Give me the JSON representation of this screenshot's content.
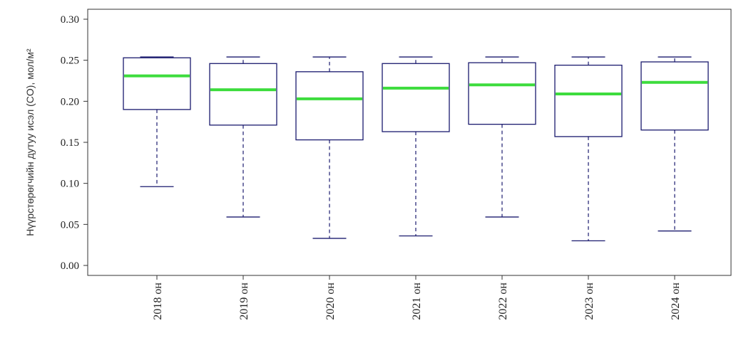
{
  "chart_data": {
    "type": "boxplot",
    "ylabel": "Нүүрстөрөгчийн дутуу исэл (CO), мол/м²",
    "ylim": [
      0.0,
      0.3
    ],
    "yticks": [
      "0.00",
      "0.05",
      "0.10",
      "0.15",
      "0.20",
      "0.25",
      "0.30"
    ],
    "categories": [
      "2018 он",
      "2019 он",
      "2020 он",
      "2021 он",
      "2022 он",
      "2023 он",
      "2024 он"
    ],
    "boxes": [
      {
        "min": 0.096,
        "q1": 0.19,
        "median": 0.231,
        "q3": 0.253,
        "max": 0.254
      },
      {
        "min": 0.059,
        "q1": 0.171,
        "median": 0.214,
        "q3": 0.246,
        "max": 0.254
      },
      {
        "min": 0.033,
        "q1": 0.153,
        "median": 0.203,
        "q3": 0.236,
        "max": 0.254
      },
      {
        "min": 0.036,
        "q1": 0.163,
        "median": 0.216,
        "q3": 0.246,
        "max": 0.254
      },
      {
        "min": 0.059,
        "q1": 0.172,
        "median": 0.22,
        "q3": 0.247,
        "max": 0.254
      },
      {
        "min": 0.03,
        "q1": 0.157,
        "median": 0.209,
        "q3": 0.244,
        "max": 0.254
      },
      {
        "min": 0.042,
        "q1": 0.165,
        "median": 0.223,
        "q3": 0.248,
        "max": 0.254
      }
    ],
    "colors": {
      "box": "#1a1a6e",
      "median": "#3ddc3d",
      "axis": "#333333"
    },
    "grid": false
  }
}
